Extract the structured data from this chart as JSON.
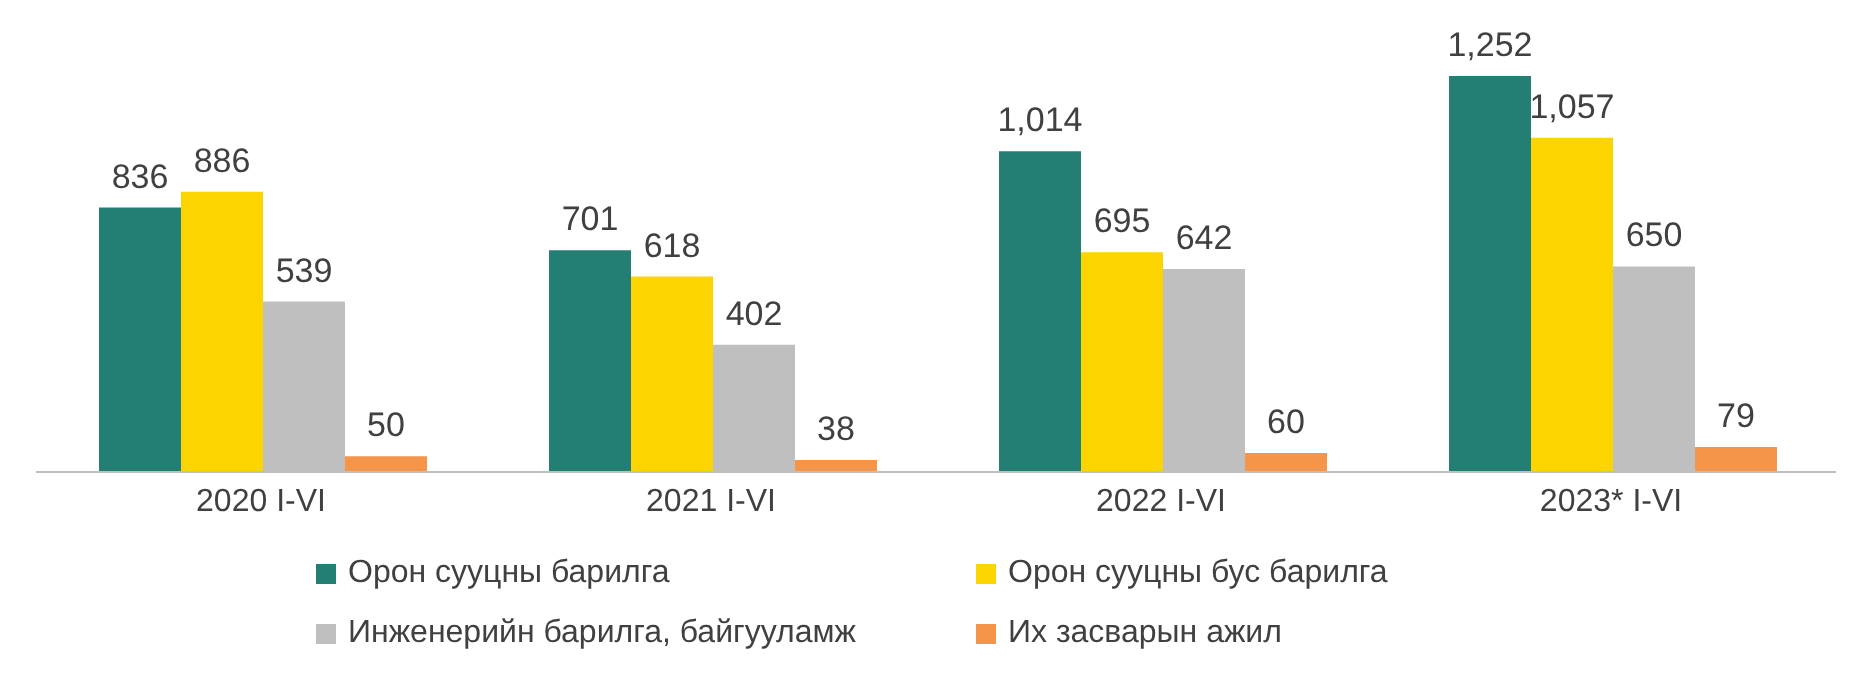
{
  "chart_data": {
    "type": "bar",
    "categories": [
      "2020 I-VI",
      "2021 I-VI",
      "2022 I-VI",
      "2023* I-VI"
    ],
    "series": [
      {
        "name": "Орон сууцны барилга",
        "color": "#237e74",
        "values": [
          836,
          701,
          1014,
          1252
        ],
        "value_labels": [
          "836",
          "701",
          "1,014",
          "1,252"
        ]
      },
      {
        "name": "Орон сууцны бус барилга",
        "color": "#fcd400",
        "values": [
          886,
          618,
          695,
          1057
        ],
        "value_labels": [
          "886",
          "618",
          "695",
          "1,057"
        ]
      },
      {
        "name": "Инженерийн барилга, байгууламж",
        "color": "#bfbfbf",
        "values": [
          539,
          402,
          642,
          650
        ],
        "value_labels": [
          "539",
          "402",
          "642",
          "650"
        ]
      },
      {
        "name": "Их засварын ажил",
        "color": "#f4954a",
        "values": [
          50,
          38,
          60,
          79
        ],
        "value_labels": [
          "50",
          "38",
          "60",
          "79"
        ]
      }
    ],
    "grid": false,
    "legend": "bottom"
  }
}
